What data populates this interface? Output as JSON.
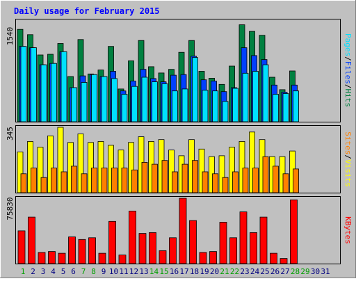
{
  "chart_data": [
    {
      "type": "bar",
      "panel": "hits",
      "title": "Daily usage for February 2015",
      "ylabel_parts": [
        "Pages",
        "/",
        "Files",
        "/",
        "Hits"
      ],
      "y_max_label": "1540",
      "ylim": [
        0,
        1540
      ],
      "days": [
        "1",
        "2",
        "3",
        "4",
        "5",
        "6",
        "7",
        "8",
        "9",
        "10",
        "11",
        "12",
        "13",
        "14",
        "15",
        "16",
        "17",
        "18",
        "19",
        "20",
        "21",
        "22",
        "23",
        "24",
        "25",
        "26",
        "27",
        "28",
        "29",
        "30",
        "31"
      ],
      "weekend_days": [
        1,
        7,
        8,
        14,
        15,
        21,
        22,
        28,
        29
      ],
      "series": [
        {
          "name": "Hits",
          "values": [
            1410,
            1330,
            1020,
            1030,
            1195,
            690,
            1255,
            730,
            790,
            1150,
            500,
            930,
            1240,
            840,
            745,
            800,
            1060,
            1240,
            770,
            665,
            570,
            850,
            1480,
            1380,
            1320,
            680,
            490,
            775
          ]
        },
        {
          "name": "Files",
          "values": [
            1150,
            1130,
            870,
            890,
            1070,
            520,
            700,
            720,
            690,
            770,
            470,
            620,
            800,
            660,
            610,
            710,
            720,
            1000,
            640,
            620,
            460,
            520,
            1130,
            1010,
            950,
            560,
            450,
            560
          ]
        },
        {
          "name": "Pages",
          "values": [
            1150,
            1130,
            870,
            890,
            1070,
            520,
            600,
            720,
            690,
            660,
            420,
            540,
            680,
            610,
            580,
            470,
            500,
            980,
            480,
            470,
            310,
            510,
            740,
            770,
            870,
            420,
            430,
            470
          ]
        }
      ]
    },
    {
      "type": "bar",
      "panel": "visits",
      "ylabel_parts": [
        "Sites",
        "/",
        "Visits"
      ],
      "y_max_label": "345",
      "ylim": [
        0,
        345
      ],
      "series": [
        {
          "name": "Visits",
          "values": [
            215,
            270,
            240,
            300,
            345,
            265,
            310,
            265,
            270,
            250,
            225,
            265,
            295,
            270,
            280,
            225,
            195,
            280,
            230,
            190,
            195,
            240,
            270,
            320,
            280,
            190,
            190,
            220
          ]
        },
        {
          "name": "Sites",
          "values": [
            100,
            130,
            80,
            130,
            110,
            140,
            100,
            130,
            130,
            130,
            130,
            120,
            160,
            150,
            170,
            110,
            150,
            170,
            110,
            100,
            80,
            110,
            130,
            130,
            190,
            140,
            100,
            125
          ]
        }
      ]
    },
    {
      "type": "bar",
      "panel": "kbytes",
      "ylabel": "KBytes",
      "y_max_label": "75830",
      "ylim": [
        0,
        75830
      ],
      "series": [
        {
          "name": "KBytes",
          "values": [
            38000,
            54000,
            13000,
            14000,
            12000,
            31000,
            28000,
            30000,
            12000,
            49000,
            10000,
            61000,
            35000,
            36000,
            15000,
            30000,
            75830,
            50000,
            13000,
            14000,
            48000,
            30000,
            60000,
            36000,
            54000,
            12000,
            6000,
            74000
          ]
        }
      ]
    }
  ],
  "colors": {
    "background": "#c0c0c0",
    "title": "#0000ff",
    "hits": "#008040",
    "files": "#0040ff",
    "pages": "#00e0ff",
    "visits": "#ffff00",
    "sites": "#ff8000",
    "kbytes": "#ff0000",
    "weekend_label": "#00a000",
    "weekday_label": "#000080"
  }
}
